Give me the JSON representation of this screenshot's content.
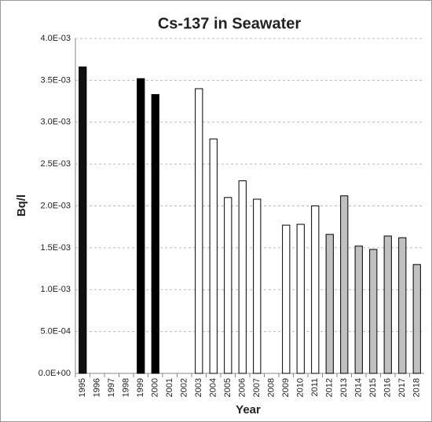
{
  "chart_data": {
    "type": "bar",
    "title": "Cs-137 in Seawater",
    "x_label": "Year",
    "y_label": "Bq/l",
    "categories": [
      "1995",
      "1996",
      "1997",
      "1998",
      "1999",
      "2000",
      "2001",
      "2002",
      "2003",
      "2004",
      "2005",
      "2006",
      "2007",
      "2008",
      "2009",
      "2010",
      "2011",
      "2012",
      "2013",
      "2014",
      "2015",
      "2016",
      "2017",
      "2018"
    ],
    "values": [
      0.00366,
      null,
      null,
      null,
      0.00352,
      0.00333,
      null,
      null,
      0.0034,
      0.0028,
      0.0021,
      0.0023,
      0.00208,
      null,
      0.00177,
      0.00178,
      0.002,
      0.00166,
      0.00212,
      0.00152,
      0.00148,
      0.00164,
      0.00162,
      0.0013
    ],
    "colors": [
      "#111111",
      null,
      null,
      null,
      "#000000",
      "#000000",
      null,
      null,
      "#ffffff",
      "#ffffff",
      "#ffffff",
      "#ffffff",
      "#ffffff",
      null,
      "#ffffff",
      "#ffffff",
      "#ffffff",
      "#c0c0c0",
      "#c0c0c0",
      "#c0c0c0",
      "#c0c0c0",
      "#c0c0c0",
      "#c0c0c0",
      "#c0c0c0"
    ],
    "ylim": [
      0,
      0.004
    ],
    "yticks": [
      {
        "value": 0,
        "label": "0.0E+00"
      },
      {
        "value": 0.0005,
        "label": "5.0E-04"
      },
      {
        "value": 0.001,
        "label": "1.0E-03"
      },
      {
        "value": 0.0015,
        "label": "1.5E-03"
      },
      {
        "value": 0.002,
        "label": "2.0E-03"
      },
      {
        "value": 0.0025,
        "label": "2.5E-03"
      },
      {
        "value": 0.003,
        "label": "3.0E-03"
      },
      {
        "value": 0.0035,
        "label": "3.5E-03"
      },
      {
        "value": 0.004,
        "label": "4.0E-03"
      }
    ],
    "grid": true
  }
}
